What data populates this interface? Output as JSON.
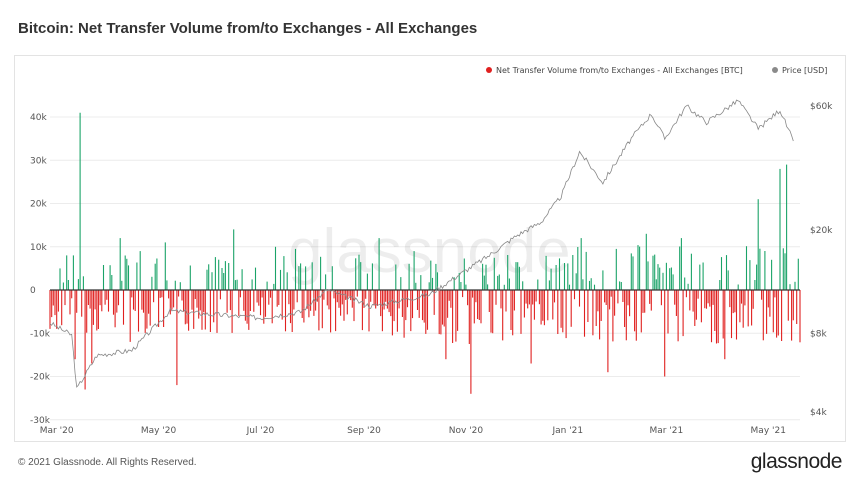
{
  "title": "Bitcoin: Net Transfer Volume from/to Exchanges - All Exchanges",
  "footer": {
    "copyright": "© 2021 Glassnode. All Rights Reserved.",
    "logo": "glassnode"
  },
  "watermark": "glassnode",
  "chart_data": {
    "type": "bar",
    "x_axis": {
      "type": "date",
      "range": [
        "2020-02-26",
        "2021-05-20"
      ],
      "ticks": [
        {
          "date": "2020-03-01",
          "label": "Mar '20"
        },
        {
          "date": "2020-05-01",
          "label": "May '20"
        },
        {
          "date": "2020-07-01",
          "label": "Jul '20"
        },
        {
          "date": "2020-09-01",
          "label": "Sep '20"
        },
        {
          "date": "2020-11-01",
          "label": "Nov '20"
        },
        {
          "date": "2021-01-01",
          "label": "Jan '21"
        },
        {
          "date": "2021-03-01",
          "label": "Mar '21"
        },
        {
          "date": "2021-05-01",
          "label": "May '21"
        }
      ]
    },
    "y_left": {
      "range": [
        -30000,
        45000
      ],
      "ticks": [
        {
          "value": 40000,
          "label": "40k"
        },
        {
          "value": 30000,
          "label": "30k"
        },
        {
          "value": 20000,
          "label": "20k"
        },
        {
          "value": 10000,
          "label": "10k"
        },
        {
          "value": 0,
          "label": "0"
        },
        {
          "value": -10000,
          "label": "-10k"
        },
        {
          "value": -20000,
          "label": "-20k"
        },
        {
          "value": -30000,
          "label": "-30k"
        }
      ]
    },
    "y_right": {
      "scale": "log",
      "range": [
        4000,
        65000
      ],
      "ticks": [
        {
          "value": 60000,
          "label": "$60k"
        },
        {
          "value": 20000,
          "label": "$20k"
        },
        {
          "value": 8000,
          "label": "$8k"
        },
        {
          "value": 4000,
          "label": "$4k"
        }
      ]
    },
    "legend": {
      "placement": "top-right",
      "items": [
        {
          "label": "Net Transfer Volume from/to Exchanges - All Exchanges [BTC]",
          "color": "#e0201f"
        },
        {
          "label": "Price [USD]",
          "color": "#8a8a8a"
        }
      ]
    },
    "colors": {
      "positive": "#1aa368",
      "negative": "#e0201f",
      "price": "#888888",
      "zero_line": "#333333"
    },
    "grid": "horizontal",
    "net_transfer_series": {
      "name": "Net Transfer Volume from/to Exchanges - All Exchanges [BTC]",
      "anchors": [
        {
          "date": "2020-02-26",
          "value": -9000
        },
        {
          "date": "2020-03-03",
          "value": 5000
        },
        {
          "date": "2020-03-07",
          "value": 8000
        },
        {
          "date": "2020-03-12",
          "value": -16000
        },
        {
          "date": "2020-03-15",
          "value": 41000
        },
        {
          "date": "2020-03-18",
          "value": -23000
        },
        {
          "date": "2020-03-22",
          "value": -17000
        },
        {
          "date": "2020-04-08",
          "value": 12000
        },
        {
          "date": "2020-04-14",
          "value": -12000
        },
        {
          "date": "2020-04-20",
          "value": 9000
        },
        {
          "date": "2020-05-05",
          "value": 11000
        },
        {
          "date": "2020-05-12",
          "value": -22000
        },
        {
          "date": "2020-06-15",
          "value": 14000
        },
        {
          "date": "2020-07-10",
          "value": 10000
        },
        {
          "date": "2020-07-22",
          "value": 9500
        },
        {
          "date": "2020-08-15",
          "value": -9500
        },
        {
          "date": "2020-09-10",
          "value": 12000
        },
        {
          "date": "2020-10-01",
          "value": 9000
        },
        {
          "date": "2020-10-20",
          "value": -16000
        },
        {
          "date": "2020-11-04",
          "value": -24000
        },
        {
          "date": "2020-12-10",
          "value": -17000
        },
        {
          "date": "2021-01-09",
          "value": 12000
        },
        {
          "date": "2021-01-25",
          "value": -19000
        },
        {
          "date": "2021-02-17",
          "value": 13000
        },
        {
          "date": "2021-02-28",
          "value": -20000
        },
        {
          "date": "2021-03-10",
          "value": 12000
        },
        {
          "date": "2021-04-05",
          "value": -16000
        },
        {
          "date": "2021-04-25",
          "value": 21000
        },
        {
          "date": "2021-05-08",
          "value": 28000
        },
        {
          "date": "2021-05-12",
          "value": 29000
        },
        {
          "date": "2021-05-16",
          "value": -7000
        }
      ]
    },
    "price_series": {
      "name": "Price [USD]",
      "points": [
        {
          "date": "2020-02-26",
          "value": 8800
        },
        {
          "date": "2020-03-10",
          "value": 7900
        },
        {
          "date": "2020-03-13",
          "value": 4900
        },
        {
          "date": "2020-03-25",
          "value": 6600
        },
        {
          "date": "2020-04-15",
          "value": 6900
        },
        {
          "date": "2020-05-08",
          "value": 9800
        },
        {
          "date": "2020-06-01",
          "value": 9500
        },
        {
          "date": "2020-07-01",
          "value": 9200
        },
        {
          "date": "2020-07-25",
          "value": 9700
        },
        {
          "date": "2020-08-10",
          "value": 11800
        },
        {
          "date": "2020-09-05",
          "value": 10200
        },
        {
          "date": "2020-10-10",
          "value": 11300
        },
        {
          "date": "2020-10-25",
          "value": 13100
        },
        {
          "date": "2020-11-15",
          "value": 16000
        },
        {
          "date": "2020-12-01",
          "value": 19000
        },
        {
          "date": "2020-12-16",
          "value": 21500
        },
        {
          "date": "2020-12-28",
          "value": 27000
        },
        {
          "date": "2021-01-08",
          "value": 40000
        },
        {
          "date": "2021-01-22",
          "value": 30500
        },
        {
          "date": "2021-02-08",
          "value": 45000
        },
        {
          "date": "2021-02-20",
          "value": 56000
        },
        {
          "date": "2021-02-28",
          "value": 45000
        },
        {
          "date": "2021-03-13",
          "value": 60000
        },
        {
          "date": "2021-03-25",
          "value": 52000
        },
        {
          "date": "2021-04-13",
          "value": 63000
        },
        {
          "date": "2021-04-25",
          "value": 49000
        },
        {
          "date": "2021-05-08",
          "value": 58000
        },
        {
          "date": "2021-05-16",
          "value": 44000
        }
      ]
    }
  }
}
